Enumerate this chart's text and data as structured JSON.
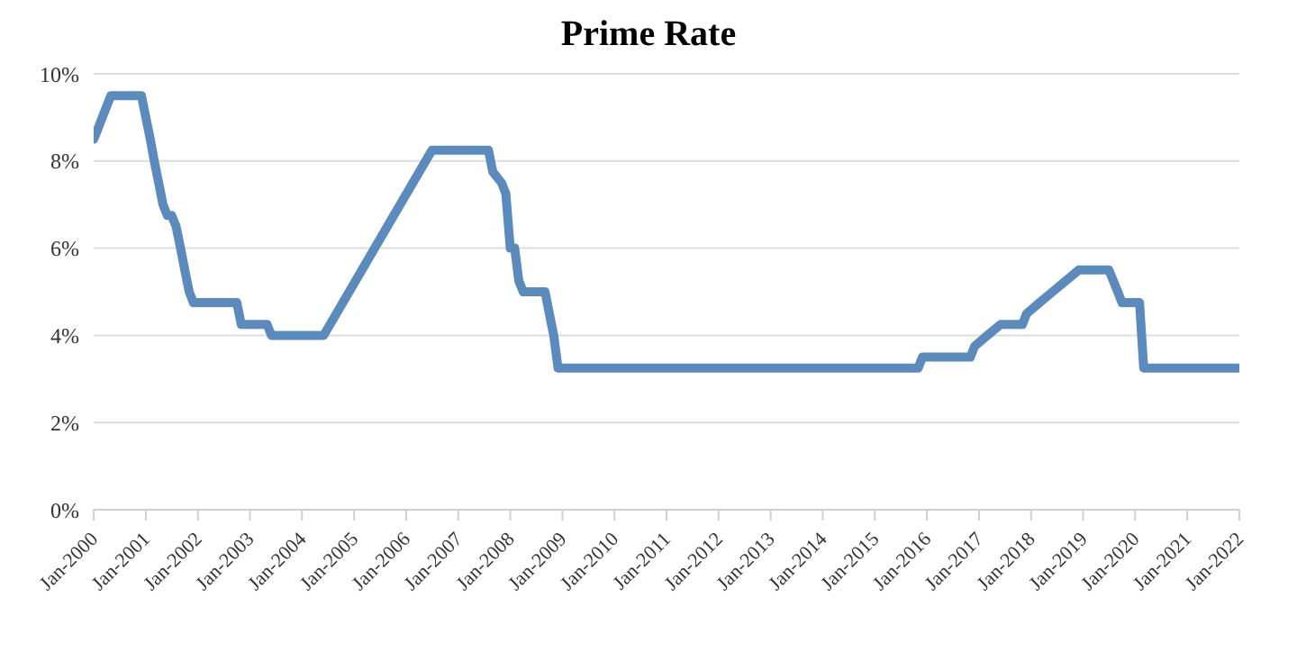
{
  "chart_data": {
    "type": "line",
    "title": "Prime Rate",
    "x": [
      "2000-01",
      "2000-02",
      "2000-03",
      "2000-05",
      "2000-12",
      "2001-01",
      "2001-02",
      "2001-03",
      "2001-04",
      "2001-05",
      "2001-06",
      "2001-07",
      "2001-08",
      "2001-09",
      "2001-10",
      "2001-11",
      "2001-12",
      "2002-10",
      "2002-11",
      "2003-05",
      "2003-06",
      "2004-06",
      "2006-07",
      "2007-08",
      "2007-09",
      "2007-11",
      "2007-12",
      "2008-01",
      "2008-02",
      "2008-03",
      "2008-04",
      "2008-09",
      "2008-10",
      "2008-11",
      "2008-12",
      "2015-11",
      "2015-12",
      "2016-11",
      "2016-12",
      "2017-03",
      "2017-06",
      "2017-11",
      "2017-12",
      "2018-03",
      "2018-06",
      "2018-09",
      "2018-12",
      "2019-07",
      "2019-08",
      "2019-09",
      "2019-10",
      "2020-02",
      "2020-03",
      "2022-01"
    ],
    "series": [
      {
        "color": "#5b8bbd",
        "values": [
          8.5,
          8.75,
          9,
          9.5,
          9.5,
          9,
          8.5,
          8,
          7.5,
          7,
          6.75,
          6.75,
          6.5,
          6,
          5.5,
          5,
          4.75,
          4.75,
          4.25,
          4.25,
          4,
          4,
          8.25,
          8.25,
          7.75,
          7.5,
          7.25,
          6,
          6,
          5.25,
          5,
          5,
          4.5,
          4,
          3.25,
          3.25,
          3.5,
          3.5,
          3.75,
          4,
          4.25,
          4.25,
          4.5,
          4.75,
          5,
          5.25,
          5.5,
          5.5,
          5.25,
          5,
          4.75,
          4.75,
          3.25,
          3.25
        ]
      }
    ],
    "xlim": [
      "2000-01",
      "2022-01"
    ],
    "xticks": [
      {
        "value": "2000-01",
        "label": "Jan-2000"
      },
      {
        "value": "2001-01",
        "label": "Jan-2001"
      },
      {
        "value": "2002-01",
        "label": "Jan-2002"
      },
      {
        "value": "2003-01",
        "label": "Jan-2003"
      },
      {
        "value": "2004-01",
        "label": "Jan-2004"
      },
      {
        "value": "2005-01",
        "label": "Jan-2005"
      },
      {
        "value": "2006-01",
        "label": "Jan-2006"
      },
      {
        "value": "2007-01",
        "label": "Jan-2007"
      },
      {
        "value": "2008-01",
        "label": "Jan-2008"
      },
      {
        "value": "2009-01",
        "label": "Jan-2009"
      },
      {
        "value": "2010-01",
        "label": "Jan-2010"
      },
      {
        "value": "2011-01",
        "label": "Jan-2011"
      },
      {
        "value": "2012-01",
        "label": "Jan-2012"
      },
      {
        "value": "2013-01",
        "label": "Jan-2013"
      },
      {
        "value": "2014-01",
        "label": "Jan-2014"
      },
      {
        "value": "2015-01",
        "label": "Jan-2015"
      },
      {
        "value": "2016-01",
        "label": "Jan-2016"
      },
      {
        "value": "2017-01",
        "label": "Jan-2017"
      },
      {
        "value": "2018-01",
        "label": "Jan-2018"
      },
      {
        "value": "2019-01",
        "label": "Jan-2019"
      },
      {
        "value": "2020-01",
        "label": "Jan-2020"
      },
      {
        "value": "2021-01",
        "label": "Jan-2021"
      },
      {
        "value": "2022-01",
        "label": "Jan-2022"
      }
    ],
    "ylim": [
      0,
      10
    ],
    "yticks": [
      {
        "value": 0,
        "label": "0%"
      },
      {
        "value": 2,
        "label": "2%"
      },
      {
        "value": 4,
        "label": "4%"
      },
      {
        "value": 6,
        "label": "6%"
      },
      {
        "value": 8,
        "label": "8%"
      },
      {
        "value": 10,
        "label": "10%"
      }
    ],
    "grid": "y",
    "marker": "none",
    "line_style": "solid",
    "legend": false
  }
}
